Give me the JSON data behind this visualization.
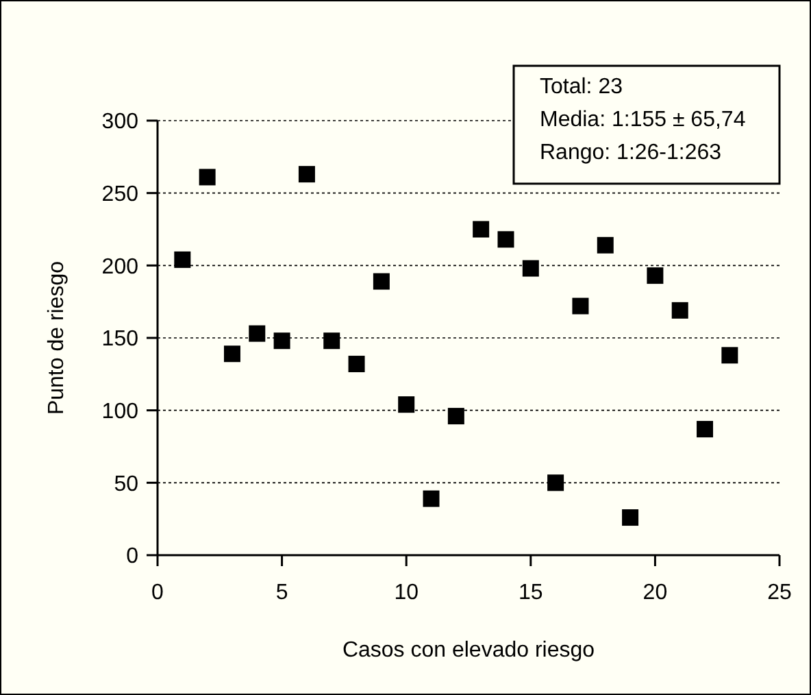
{
  "chart_data": {
    "type": "scatter",
    "xlabel": "Casos con elevado riesgo",
    "ylabel": "Punto de riesgo",
    "x": [
      1,
      2,
      3,
      4,
      5,
      6,
      7,
      8,
      9,
      10,
      11,
      12,
      13,
      14,
      15,
      16,
      17,
      18,
      19,
      20,
      21,
      22,
      23
    ],
    "values": [
      204,
      261,
      139,
      153,
      148,
      263,
      148,
      132,
      189,
      104,
      39,
      96,
      225,
      218,
      198,
      50,
      172,
      214,
      26,
      193,
      169,
      87,
      138
    ],
    "color": "#000000",
    "marker": "square",
    "xlim": [
      0,
      25
    ],
    "xticks": [
      0,
      5,
      10,
      15,
      20,
      25
    ],
    "ylim": [
      0,
      300
    ],
    "yticks": [
      0,
      50,
      100,
      150,
      200,
      250,
      300
    ],
    "grid": "y",
    "annotations": [
      "Total: 23",
      "Media: 1:155 ± 65,74",
      "Rango: 1:26-1:263"
    ]
  }
}
